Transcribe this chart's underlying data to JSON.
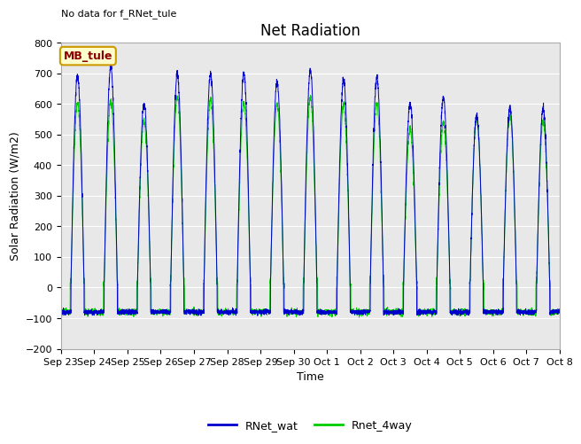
{
  "title": "Net Radiation",
  "xlabel": "Time",
  "ylabel": "Solar Radiation (W/m2)",
  "no_data_text": "No data for f_RNet_tule",
  "station_label": "MB_tule",
  "ylim": [
    -200,
    800
  ],
  "yticks": [
    -200,
    -100,
    0,
    100,
    200,
    300,
    400,
    500,
    600,
    700,
    800
  ],
  "xtick_labels": [
    "Sep 23",
    "Sep 24",
    "Sep 25",
    "Sep 26",
    "Sep 27",
    "Sep 28",
    "Sep 29",
    "Sep 30",
    "Oct 1",
    "Oct 2",
    "Oct 3",
    "Oct 4",
    "Oct 5",
    "Oct 6",
    "Oct 7",
    "Oct 8"
  ],
  "legend_entries": [
    "RNet_wat",
    "Rnet_4way"
  ],
  "line_colors": [
    "#0000cc",
    "#00cc00"
  ],
  "background_color": "#e8e8e8",
  "title_fontsize": 12,
  "label_fontsize": 9,
  "tick_fontsize": 8,
  "night_base": -80,
  "day_peak_values_blue": [
    690,
    720,
    600,
    695,
    700,
    700,
    670,
    710,
    680,
    685,
    600,
    620,
    560,
    590,
    585
  ],
  "day_peak_values_green": [
    605,
    610,
    545,
    625,
    615,
    605,
    600,
    620,
    595,
    600,
    520,
    540,
    555,
    565,
    545
  ]
}
